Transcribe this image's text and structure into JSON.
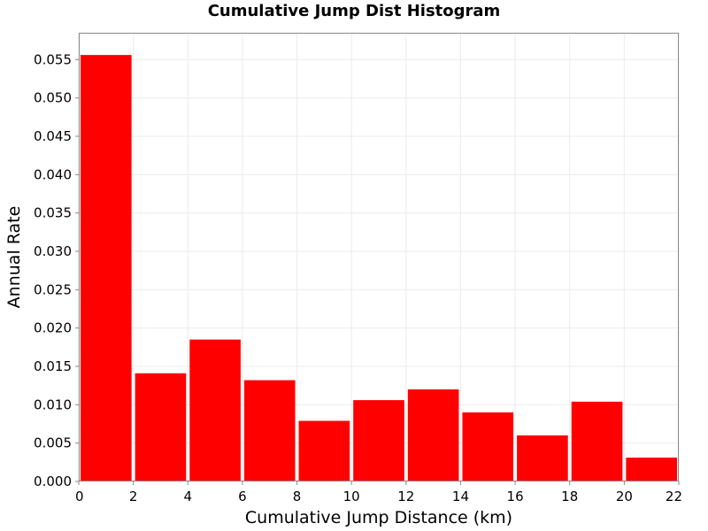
{
  "chart_data": {
    "type": "bar",
    "title": "Cumulative Jump Dist Histogram",
    "xlabel": "Cumulative Jump Distance (km)",
    "ylabel": "Annual Rate",
    "xlim": [
      0,
      22
    ],
    "ylim": [
      0,
      0.0585
    ],
    "grid": true,
    "bar_color": "#ff0000",
    "grid_color": "#ebebeb",
    "x_ticks": [
      "0",
      "2",
      "4",
      "6",
      "8",
      "10",
      "12",
      "14",
      "16",
      "18",
      "20",
      "22"
    ],
    "y_ticks": [
      "0.000",
      "0.005",
      "0.010",
      "0.015",
      "0.020",
      "0.025",
      "0.030",
      "0.035",
      "0.040",
      "0.045",
      "0.050",
      "0.055"
    ],
    "bins": [
      {
        "x0": 0,
        "x1": 2,
        "value": 0.0556
      },
      {
        "x0": 2,
        "x1": 4,
        "value": 0.0141
      },
      {
        "x0": 4,
        "x1": 6,
        "value": 0.0185
      },
      {
        "x0": 6,
        "x1": 8,
        "value": 0.0132
      },
      {
        "x0": 8,
        "x1": 10,
        "value": 0.0079
      },
      {
        "x0": 10,
        "x1": 12,
        "value": 0.0106
      },
      {
        "x0": 12,
        "x1": 14,
        "value": 0.012
      },
      {
        "x0": 14,
        "x1": 16,
        "value": 0.009
      },
      {
        "x0": 16,
        "x1": 18,
        "value": 0.006
      },
      {
        "x0": 18,
        "x1": 20,
        "value": 0.0104
      },
      {
        "x0": 20,
        "x1": 22,
        "value": 0.0031
      }
    ]
  }
}
